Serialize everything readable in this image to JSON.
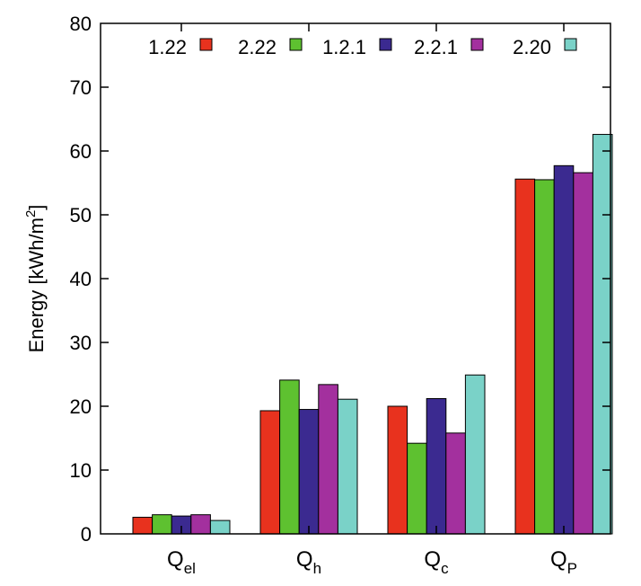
{
  "chart_data": {
    "type": "bar",
    "categories": [
      {
        "main": "Q",
        "sub": "el"
      },
      {
        "main": "Q",
        "sub": "h"
      },
      {
        "main": "Q",
        "sub": "c"
      },
      {
        "main": "Q",
        "sub": "P"
      }
    ],
    "series": [
      {
        "name": "1.22",
        "color": "#e8321e",
        "values": [
          2.6,
          19.3,
          20.0,
          55.6
        ]
      },
      {
        "name": "2.22",
        "color": "#5ec130",
        "values": [
          3.0,
          24.1,
          14.2,
          55.5
        ]
      },
      {
        "name": "1.2.1",
        "color": "#3b2a90",
        "values": [
          2.8,
          19.5,
          21.2,
          57.7
        ]
      },
      {
        "name": "2.2.1",
        "color": "#a3309e",
        "values": [
          3.0,
          23.4,
          15.8,
          56.6
        ]
      },
      {
        "name": "2.20",
        "color": "#7ad2c8",
        "values": [
          2.1,
          21.1,
          24.9,
          62.6
        ]
      }
    ],
    "ylabel": {
      "text": "Energy [kWh/m",
      "sup": "2",
      "suffix": "]"
    },
    "ylim": [
      0,
      80
    ],
    "yticks": [
      0,
      10,
      20,
      30,
      40,
      50,
      60,
      70,
      80
    ],
    "grid": false,
    "legend_position": "top-right"
  }
}
